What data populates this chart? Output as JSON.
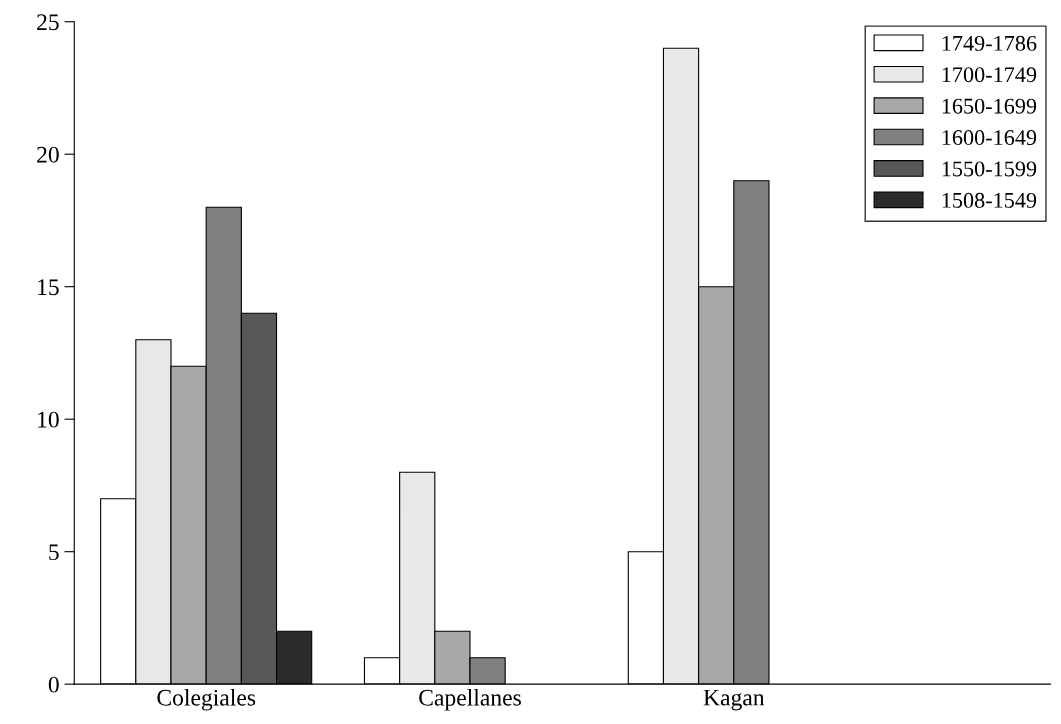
{
  "chart_data": {
    "type": "bar",
    "categories": [
      "Colegiales",
      "Capellanes",
      "Kagan"
    ],
    "series": [
      {
        "name": "1749-1786",
        "color": "#ffffff",
        "values": [
          7,
          1,
          5
        ]
      },
      {
        "name": "1700-1749",
        "color": "#e8e8e8",
        "values": [
          13,
          8,
          24
        ]
      },
      {
        "name": "1650-1699",
        "color": "#a8a8a8",
        "values": [
          12,
          2,
          15
        ]
      },
      {
        "name": "1600-1649",
        "color": "#808080",
        "values": [
          18,
          1,
          19
        ]
      },
      {
        "name": "1550-1599",
        "color": "#585858",
        "values": [
          14,
          null,
          null
        ]
      },
      {
        "name": "1508-1549",
        "color": "#2b2b2b",
        "values": [
          2,
          null,
          null
        ]
      }
    ],
    "ylim": [
      0,
      25
    ],
    "yticks": [
      0,
      5,
      10,
      15,
      20,
      25
    ],
    "grid": false,
    "legend": "top right"
  }
}
